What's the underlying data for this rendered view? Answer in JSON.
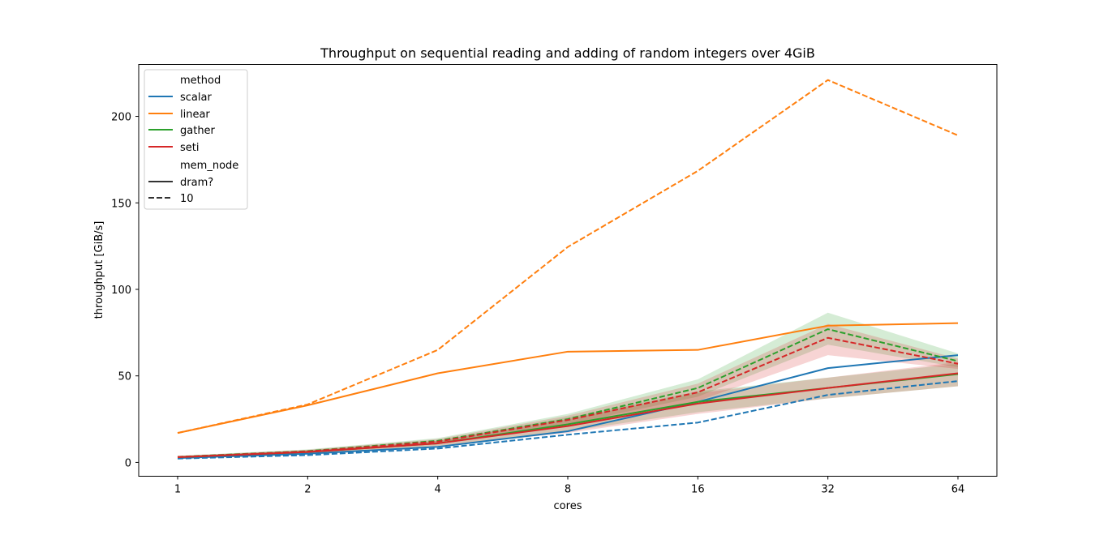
{
  "chart_data": {
    "type": "line",
    "title": "Throughput on sequential reading and adding of random integers over 4GiB",
    "xlabel": "cores",
    "ylabel": "throughput [GiB/s]",
    "x": [
      1,
      2,
      4,
      8,
      16,
      32,
      64
    ],
    "x_tick_labels": [
      "1",
      "2",
      "4",
      "8",
      "16",
      "32",
      "64"
    ],
    "y_ticks": [
      0,
      50,
      100,
      150,
      200
    ],
    "y_tick_labels": [
      "0",
      "50",
      "100",
      "150",
      "200"
    ],
    "ylim": [
      -8,
      230
    ],
    "legend": {
      "position": "top-left",
      "hue_title": "method",
      "methods": [
        {
          "label": "scalar",
          "color": "#1f77b4"
        },
        {
          "label": "linear",
          "color": "#ff7f0e"
        },
        {
          "label": "gather",
          "color": "#2ca02c"
        },
        {
          "label": "seti",
          "color": "#d62728"
        }
      ],
      "style_title": "mem_node",
      "styles": [
        {
          "label": "dram?",
          "dash": "solid"
        },
        {
          "label": "10",
          "dash": "dashed"
        }
      ]
    },
    "series": [
      {
        "name": "scalar dram?",
        "method": "scalar",
        "mem_node": "dram?",
        "color": "#1f77b4",
        "dashed": false,
        "values": [
          2.5,
          5,
          9,
          18,
          35,
          54.5,
          62
        ]
      },
      {
        "name": "scalar 10",
        "method": "scalar",
        "mem_node": "10",
        "color": "#1f77b4",
        "dashed": true,
        "values": [
          2.2,
          4.2,
          8,
          16,
          23,
          39,
          47
        ]
      },
      {
        "name": "linear dram?",
        "method": "linear",
        "mem_node": "dram?",
        "color": "#ff7f0e",
        "dashed": false,
        "values": [
          17,
          33,
          51.5,
          64,
          65,
          79,
          80.5
        ]
      },
      {
        "name": "linear 10",
        "method": "linear",
        "mem_node": "10",
        "color": "#ff7f0e",
        "dashed": true,
        "values": [
          17,
          33.5,
          65,
          124.5,
          168.5,
          221,
          189
        ]
      },
      {
        "name": "gather dram?",
        "method": "gather",
        "mem_node": "dram?",
        "color": "#2ca02c",
        "dashed": false,
        "values": [
          3,
          6,
          11,
          22,
          35,
          43,
          51
        ],
        "band": {
          "color": "#2ca02c",
          "lower": [
            2.4,
            5,
            9.5,
            18,
            29,
            37,
            44
          ],
          "upper": [
            3.6,
            7,
            12.5,
            26,
            41,
            49,
            57
          ]
        }
      },
      {
        "name": "gather 10",
        "method": "gather",
        "mem_node": "10",
        "color": "#2ca02c",
        "dashed": true,
        "values": [
          3.2,
          6.5,
          12.5,
          25,
          43,
          77,
          58.5
        ],
        "band": {
          "color": "#2ca02c",
          "lower": [
            2.6,
            5.5,
            11,
            22,
            38,
            68,
            55
          ],
          "upper": [
            3.8,
            7.5,
            14,
            28,
            48,
            86.5,
            63
          ]
        }
      },
      {
        "name": "seti dram?",
        "method": "seti",
        "mem_node": "dram?",
        "color": "#d62728",
        "dashed": false,
        "values": [
          3,
          6,
          11,
          21,
          34,
          43,
          51.5
        ],
        "band": {
          "color": "#d62728",
          "lower": [
            2.4,
            5,
            9.5,
            17,
            28,
            37,
            44
          ],
          "upper": [
            3.6,
            7,
            12.5,
            25,
            40,
            49,
            58
          ]
        }
      },
      {
        "name": "seti 10",
        "method": "seti",
        "mem_node": "10",
        "color": "#d62728",
        "dashed": true,
        "values": [
          3.1,
          6.3,
          12,
          24.5,
          40.5,
          72,
          57
        ],
        "band": {
          "color": "#d62728",
          "lower": [
            2.5,
            5.3,
            10.5,
            21,
            35.5,
            62,
            54
          ],
          "upper": [
            3.7,
            7.3,
            13.5,
            27,
            45.5,
            80,
            60
          ]
        }
      }
    ]
  }
}
